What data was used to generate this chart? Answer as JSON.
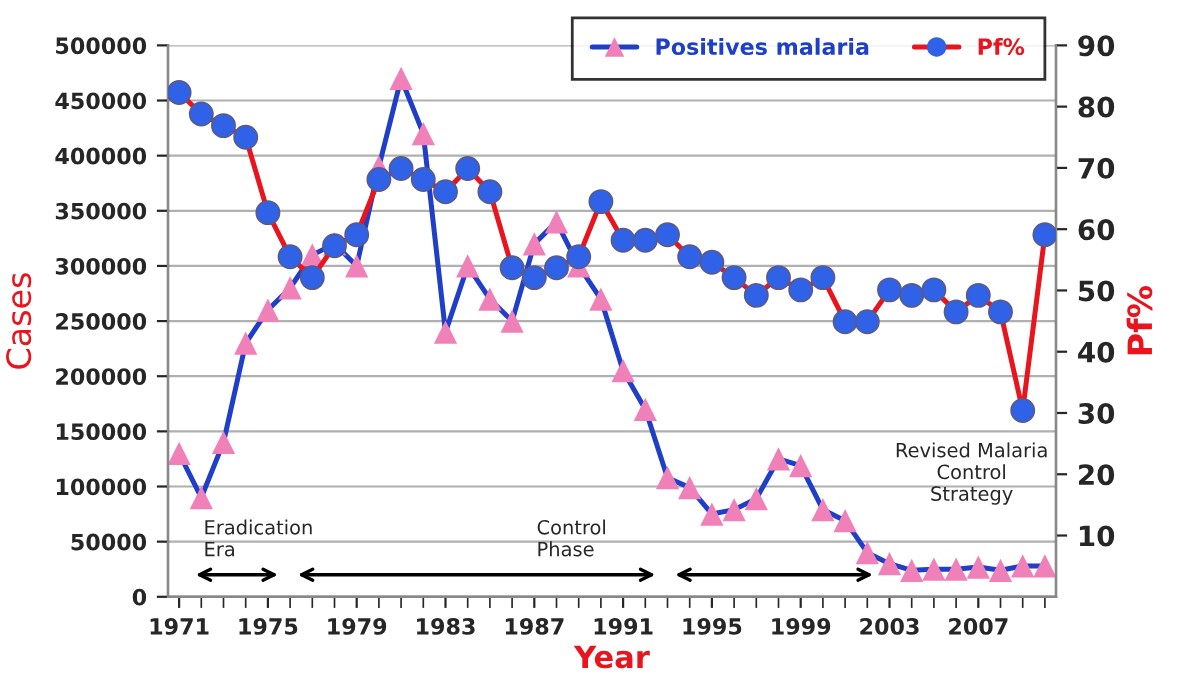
{
  "chart_data": {
    "type": "line",
    "xlabel": "Year",
    "ylabel": "Cases",
    "y2label": "Pf%",
    "x": [
      1971,
      1972,
      1973,
      1974,
      1975,
      1976,
      1977,
      1978,
      1979,
      1980,
      1981,
      1982,
      1983,
      1984,
      1985,
      1986,
      1987,
      1988,
      1989,
      1990,
      1991,
      1992,
      1993,
      1994,
      1995,
      1996,
      1997,
      1998,
      1999,
      2000,
      2001,
      2002,
      2003,
      2004,
      2005,
      2006,
      2007,
      2008,
      2009,
      2010
    ],
    "series": [
      {
        "name": "Positives malaria",
        "color": "#1f3fc8",
        "marker": "triangle",
        "colors": [
          "#f080b8",
          "#f080b8",
          "#f080b8",
          "#f080b8",
          "#f080b8",
          "#f080b8",
          "#f080b8",
          "#f080b8",
          "#f080b8",
          "#f080b8",
          "#f080b8",
          "#f080b8",
          "#f080b8",
          "#f080b8",
          "#f080b8",
          "#f080b8",
          "#f080b8",
          "#f080b8",
          "#f080b8",
          "#f080b8",
          "#f080b8",
          "#f080b8",
          "#f080b8",
          "#f080b8",
          "#f080b8",
          "#f080b8",
          "#f080b8",
          "#f080b8",
          "#f080b8",
          "#f080b8",
          "#f080b8",
          "#f080b8",
          "#f080b8",
          "#f080b8",
          "#f080b8",
          "#f080b8",
          "#f080b8",
          "#f080b8",
          "#f080b8",
          "#f080b8"
        ],
        "values": [
          130000,
          90000,
          140000,
          230000,
          260000,
          280000,
          310000,
          320000,
          300000,
          390000,
          470000,
          420000,
          240000,
          300000,
          270000,
          250000,
          320000,
          340000,
          300000,
          270000,
          205000,
          170000,
          108000,
          99000,
          75000,
          79000,
          89000,
          125000,
          119000,
          79000,
          69000,
          40000,
          30000,
          24000,
          25000,
          25000,
          27000,
          24000,
          28000,
          28000
        ]
      },
      {
        "name": "Pf%",
        "color": "#e8141e",
        "marker": "circle",
        "axis": "y2",
        "colors": [
          "#2f62e6",
          "#2f62e6",
          "#2f62e6",
          "#2f62e6",
          "#2f62e6",
          "#2f62e6",
          "#2f62e6",
          "#2f62e6",
          "#2f62e6",
          "#2f62e6",
          "#2f62e6",
          "#2f62e6",
          "#2f62e6",
          "#2f62e6",
          "#2f62e6",
          "#2f62e6",
          "#2f62e6",
          "#2f62e6",
          "#2f62e6",
          "#2f62e6",
          "#2f62e6",
          "#2f62e6",
          "#2f62e6",
          "#2f62e6",
          "#2f62e6",
          "#2f62e6",
          "#2f62e6",
          "#2f62e6",
          "#2f62e6",
          "#2f62e6",
          "#2f62e6",
          "#2f62e6",
          "#2f62e6",
          "#2f62e6",
          "#2f62e6",
          "#2f62e6",
          "#2f62e6",
          "#2f62e6",
          "#2f62e6",
          "#2f62e6"
        ],
        "values": [
          82.3,
          78.8,
          76.9,
          75,
          62.7,
          55.5,
          52.1,
          57.3,
          59.1,
          68.1,
          69.9,
          68.1,
          66.1,
          69.9,
          66.1,
          53.7,
          52.1,
          53.7,
          55.5,
          64.5,
          58.2,
          58.2,
          59.1,
          55.5,
          54.6,
          52.1,
          49.2,
          52.1,
          50.1,
          52.1,
          44.9,
          44.9,
          50.1,
          49.2,
          50.1,
          46.5,
          49.2,
          46.5,
          30.4,
          59.1
        ]
      }
    ],
    "xlim": [
      1970.5,
      2010.5
    ],
    "xticks": [
      1971,
      1975,
      1979,
      1983,
      1987,
      1991,
      1995,
      1999,
      2003,
      2007
    ],
    "ylim": [
      0,
      500000
    ],
    "yticks": [
      0,
      50000,
      100000,
      150000,
      200000,
      250000,
      300000,
      350000,
      400000,
      450000,
      500000
    ],
    "y2lim": [
      0,
      90
    ],
    "y2ticks": [
      10,
      20,
      30,
      40,
      50,
      60,
      70,
      80,
      90
    ],
    "grid": "y",
    "legend": "top right",
    "annotations": [
      "Eradication\nEra",
      "Control\nPhase",
      "Revised Malaria\nControl\nStrategy"
    ]
  }
}
